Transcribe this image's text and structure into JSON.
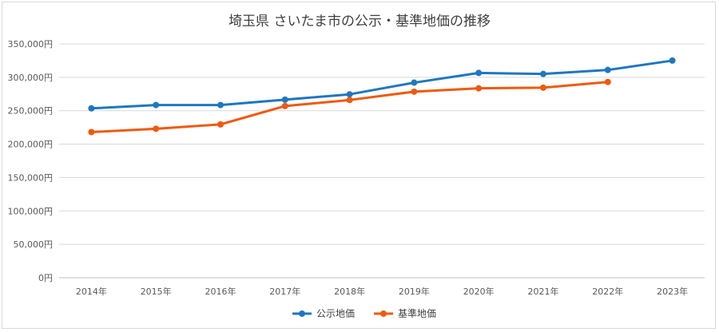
{
  "chart_data": {
    "type": "line",
    "title": "埼玉県 さいたま市の公示・基準地価の推移",
    "xlabel": "",
    "ylabel": "",
    "categories": [
      "2014年",
      "2015年",
      "2016年",
      "2017年",
      "2018年",
      "2019年",
      "2020年",
      "2021年",
      "2022年",
      "2023年"
    ],
    "y_ticks": [
      0,
      50000,
      100000,
      150000,
      200000,
      250000,
      300000,
      350000
    ],
    "y_tick_labels": [
      "0円",
      "50,000円",
      "100,000円",
      "150,000円",
      "200,000円",
      "250,000円",
      "300,000円",
      "350,000円"
    ],
    "ylim": [
      0,
      350000
    ],
    "grid": true,
    "legend_position": "bottom",
    "series": [
      {
        "name": "公示地価",
        "color": "#1f77c0",
        "values": [
          253500,
          258500,
          258500,
          266500,
          274500,
          292000,
          306500,
          305000,
          311000,
          325000
        ]
      },
      {
        "name": "基準地価",
        "color": "#ee5a0e",
        "values": [
          218000,
          223000,
          229500,
          257000,
          266000,
          278500,
          283500,
          284500,
          293000,
          null
        ]
      }
    ]
  }
}
